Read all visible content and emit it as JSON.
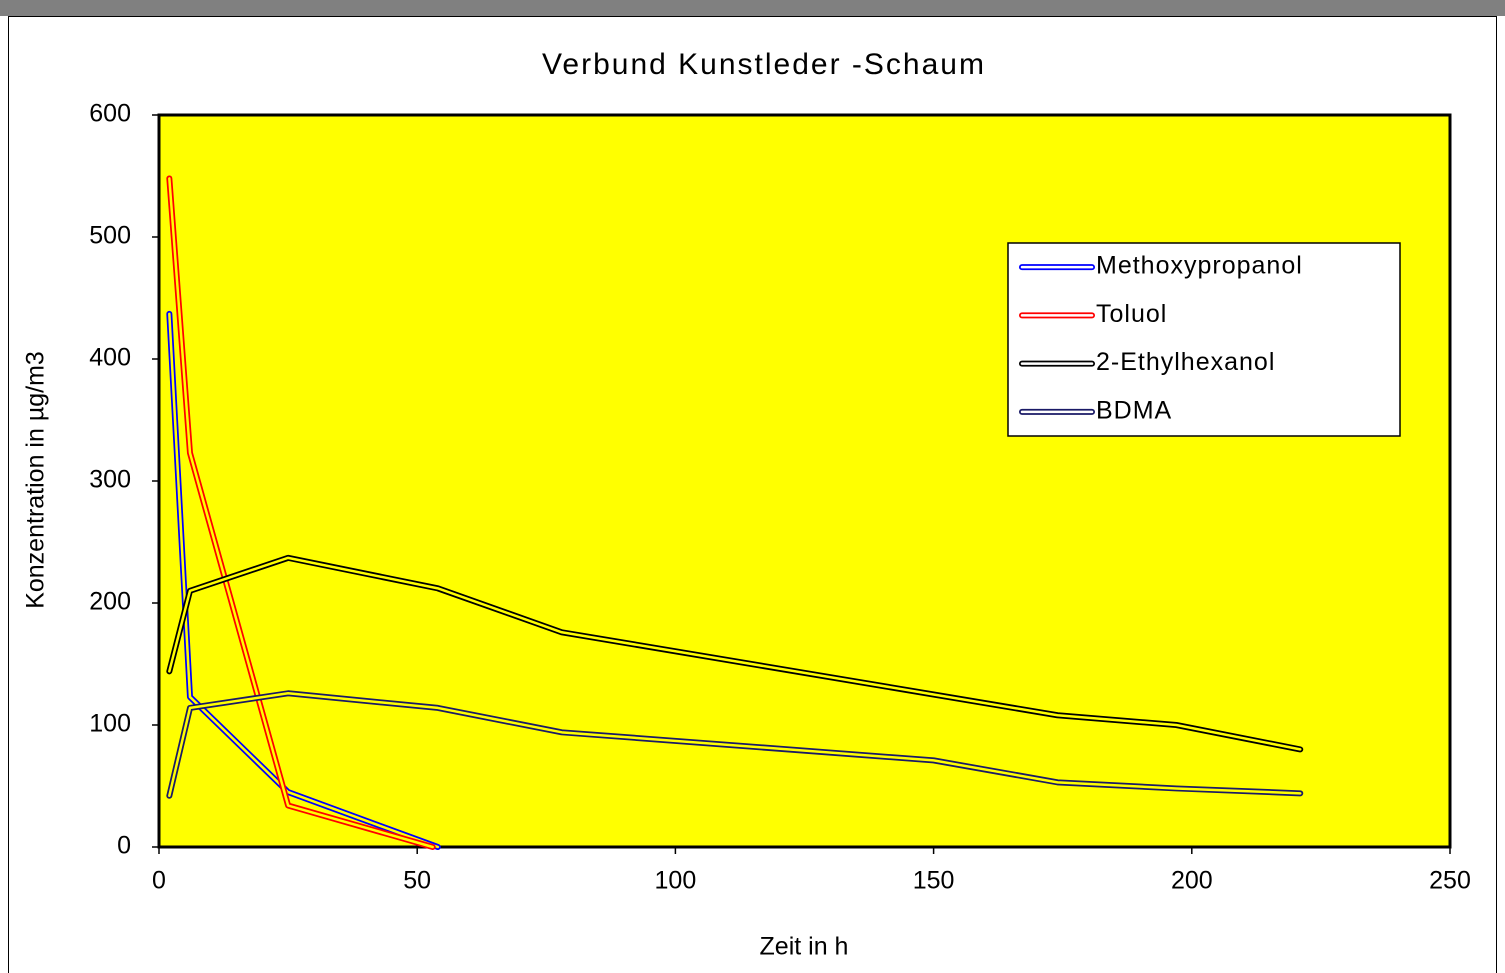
{
  "chart_data": {
    "type": "line",
    "title": "Verbund Kunstleder -Schaum",
    "x_label": "Zeit in h",
    "y_label": "Konzentration in µg/m3",
    "xlim": [
      0,
      250
    ],
    "xticks": [
      0,
      50,
      100,
      150,
      200,
      250
    ],
    "ylim": [
      0,
      600
    ],
    "yticks": [
      0,
      100,
      200,
      300,
      400,
      500,
      600
    ],
    "background": "#ffff00",
    "legend": "upper right",
    "series": [
      {
        "name": "Methoxypropanol",
        "color": "#0000ff",
        "x": [
          2,
          6,
          25,
          54
        ],
        "values": [
          437,
          123,
          45,
          0
        ]
      },
      {
        "name": "Toluol",
        "color": "#ff0000",
        "x": [
          2,
          6,
          25,
          53
        ],
        "values": [
          548,
          323,
          34,
          0
        ]
      },
      {
        "name": "2-Ethylhexanol",
        "color": "#000000",
        "x": [
          2,
          6,
          25,
          54,
          78,
          150,
          174,
          197,
          221
        ],
        "values": [
          144,
          210,
          237,
          212,
          176,
          125,
          108,
          100,
          80
        ]
      },
      {
        "name": "BDMA",
        "color": "#1a1a66",
        "x": [
          2,
          6,
          25,
          54,
          78,
          150,
          174,
          197,
          221
        ],
        "values": [
          42,
          114,
          126,
          114,
          94,
          71,
          53,
          48,
          44
        ]
      }
    ]
  }
}
